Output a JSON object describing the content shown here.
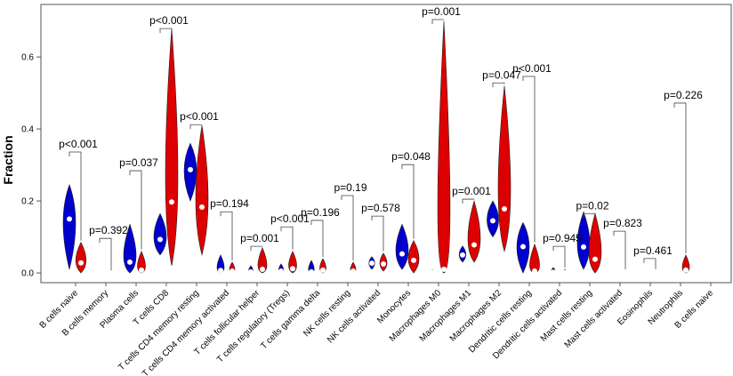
{
  "chart_data": {
    "type": "violin",
    "y_label": "Fraction",
    "ylim": [
      -0.027,
      0.746
    ],
    "yticks": [
      {
        "value": 0,
        "label": "0.0"
      },
      0.2,
      0.4,
      0.6
    ],
    "categories": [
      "B cells naive",
      "B cells memory",
      "Plasma cells",
      "T cells CD8",
      "T cells CD4 memory resting",
      "T cells CD4 memory activated",
      "T cells follicular helper",
      "T cells regulatory (Tregs)",
      "T cells gamma delta",
      "NK cells resting",
      "NK cells activated",
      "Monocytes",
      "Macrophages M0",
      "Macrophages M1",
      "Macrophages M2",
      "Dendritic cells resting",
      "Dendritic cells activated",
      "Mast cells resting",
      "Mast cells activated",
      "Eosinophils",
      "Neutrophils",
      "B cells naive"
    ],
    "series": [
      {
        "color": "#0000cc",
        "values": [
          0.15,
          0,
          0.03,
          0.093,
          0.287,
          0.007,
          0.003,
          0.005,
          0.003,
          0.001,
          0.027,
          0.053,
          0.002,
          0.05,
          0.145,
          0.073,
          0.002,
          0.072,
          0.001,
          0.001,
          0.001,
          null
        ],
        "max": [
          0.245,
          0.002,
          0.135,
          0.165,
          0.36,
          0.05,
          0.02,
          0.025,
          0.035,
          0.005,
          0.045,
          0.135,
          0.01,
          0.075,
          0.2,
          0.14,
          0.015,
          0.17,
          0.004,
          0.004,
          0.006,
          null
        ],
        "min": [
          0.01,
          0,
          0,
          0.05,
          0.2,
          0,
          0,
          0,
          0,
          0,
          0.01,
          0.01,
          0,
          0.03,
          0.1,
          0,
          0,
          0.01,
          0,
          0,
          0,
          null
        ]
      },
      {
        "color": "#dd0000",
        "values": [
          0.028,
          0,
          0.008,
          0.197,
          0.183,
          0.005,
          0.01,
          0.012,
          0.008,
          0.005,
          0.025,
          0.035,
          0.01,
          0.078,
          0.178,
          0.005,
          0.001,
          0.038,
          0.001,
          0.001,
          0.008,
          null
        ],
        "max": [
          0.085,
          0.002,
          0.06,
          0.68,
          0.41,
          0.03,
          0.07,
          0.06,
          0.04,
          0.03,
          0.055,
          0.09,
          0.7,
          0.2,
          0.52,
          0.08,
          0.01,
          0.165,
          0.005,
          0.006,
          0.05,
          null
        ],
        "min": [
          0,
          0,
          0,
          0.02,
          0.05,
          0,
          0,
          0,
          0,
          0,
          0.005,
          0,
          0,
          0.03,
          0.06,
          0,
          0,
          0,
          0,
          0,
          0,
          null
        ]
      }
    ],
    "annotations": {
      "labels": [
        "p<0.001",
        "p=0.392",
        "p=0.037",
        "p<0.001",
        "p<0.001",
        "p=0.194",
        "p=0.001",
        "p<0.001",
        "p=0.196",
        "p=0.19",
        "p=0.578",
        "p=0.048",
        "p=0.001",
        "p=0.001",
        "p=0.047",
        "p<0.001",
        "p=0.945",
        "p=0.02",
        "p=0.823",
        "p=0.461",
        "p=0.226",
        null
      ],
      "y": [
        0.336,
        0.096,
        0.284,
        0.679,
        0.412,
        0.17,
        0.074,
        0.128,
        0.146,
        0.215,
        0.158,
        0.301,
        0.704,
        0.205,
        0.528,
        0.546,
        0.074,
        0.165,
        0.116,
        0.04,
        0.472,
        null
      ]
    }
  }
}
